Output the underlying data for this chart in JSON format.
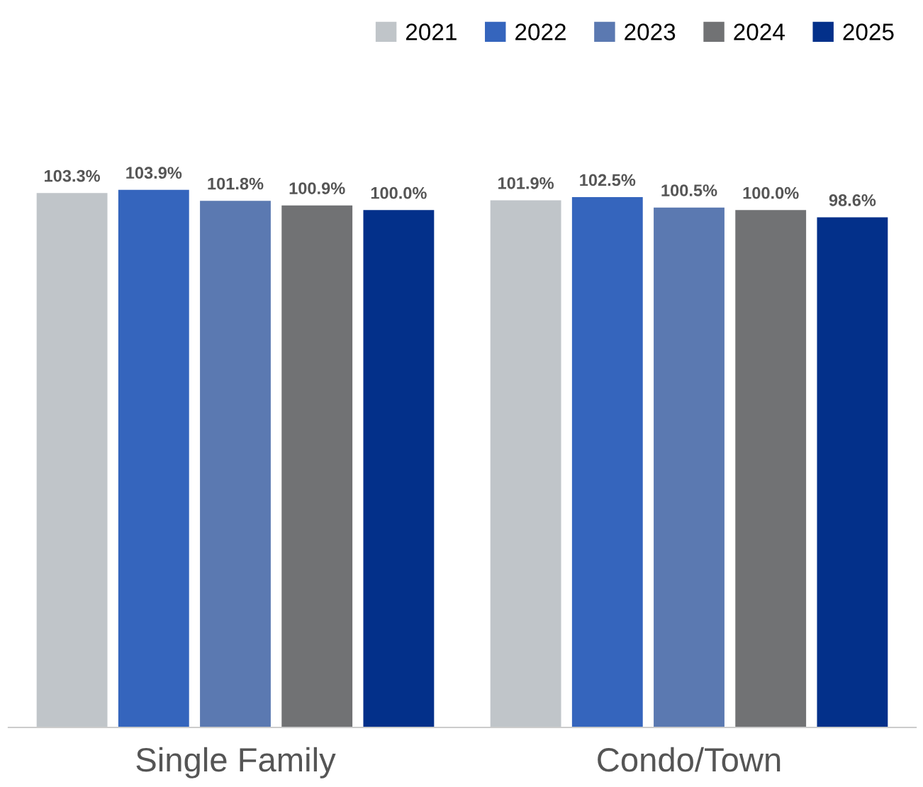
{
  "chart_data": {
    "type": "bar",
    "categories": [
      "Single Family",
      "Condo/Town"
    ],
    "series": [
      {
        "name": "2021",
        "color": "#c0c5c9",
        "values": [
          103.3,
          101.9
        ],
        "value_labels": [
          "103.3%",
          "101.9%"
        ]
      },
      {
        "name": "2022",
        "color": "#3565bd",
        "values": [
          103.9,
          102.5
        ],
        "value_labels": [
          "103.9%",
          "102.5%"
        ]
      },
      {
        "name": "2023",
        "color": "#5b79b1",
        "values": [
          101.8,
          100.5
        ],
        "value_labels": [
          "101.8%",
          "100.5%"
        ]
      },
      {
        "name": "2024",
        "color": "#717274",
        "values": [
          100.9,
          100.0
        ],
        "value_labels": [
          "100.9%",
          "100.0%"
        ]
      },
      {
        "name": "2025",
        "color": "#03308a",
        "values": [
          100.0,
          98.6
        ],
        "value_labels": [
          "100.0%",
          "98.6%"
        ]
      }
    ],
    "legend": "top right",
    "grid": false,
    "tick_labels": "x"
  }
}
